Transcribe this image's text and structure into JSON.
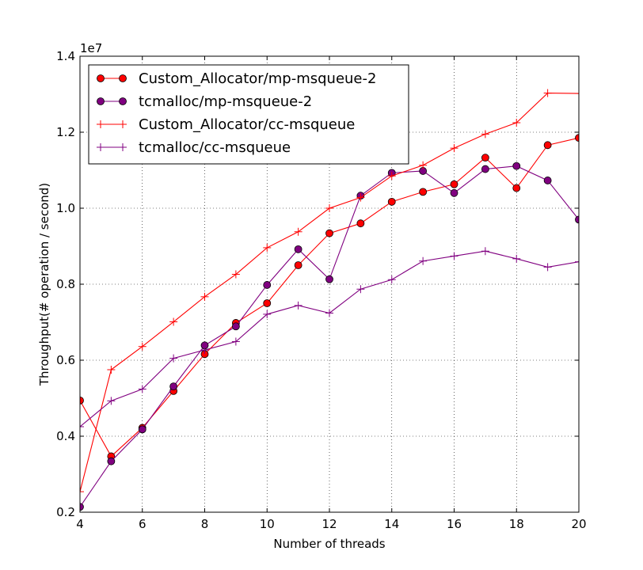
{
  "chart_data": {
    "type": "line",
    "title": "",
    "xlabel": "Number of threads",
    "ylabel": "Throughput(# operation / second)",
    "y_offset_label": "1e7",
    "xlim": [
      4,
      20
    ],
    "ylim": [
      0.2,
      1.4
    ],
    "xticks": [
      4,
      6,
      8,
      10,
      12,
      14,
      16,
      18,
      20
    ],
    "xtick_labels": [
      "4",
      "6",
      "8",
      "10",
      "12",
      "14",
      "16",
      "18",
      "20"
    ],
    "yticks": [
      0.2,
      0.4,
      0.6,
      0.8,
      1.0,
      1.2,
      1.4
    ],
    "ytick_labels": [
      "0.2",
      "0.4",
      "0.6",
      "0.8",
      "1.0",
      "1.2",
      "1.4"
    ],
    "grid": true,
    "legend_position": "top-left",
    "x": [
      4,
      5,
      6,
      7,
      8,
      9,
      10,
      11,
      12,
      13,
      14,
      15,
      16,
      17,
      18,
      19,
      20
    ],
    "series": [
      {
        "name": "Custom_Allocator/mp-msqueue-2",
        "color": "#ff0000",
        "marker": "circle",
        "values": [
          0.494,
          0.347,
          0.422,
          0.519,
          0.616,
          0.698,
          0.75,
          0.85,
          0.934,
          0.96,
          1.017,
          1.043,
          1.063,
          1.133,
          1.053,
          1.166,
          1.185
        ]
      },
      {
        "name": "tcmalloc/mp-msqueue-2",
        "color": "#800080",
        "marker": "circle",
        "values": [
          0.214,
          0.334,
          0.418,
          0.531,
          0.639,
          0.689,
          0.798,
          0.892,
          0.813,
          1.033,
          1.093,
          1.098,
          1.04,
          1.103,
          1.111,
          1.073,
          0.97
        ]
      },
      {
        "name": "Custom_Allocator/cc-msqueue",
        "color": "#ff0000",
        "marker": "plus",
        "values": [
          0.254,
          0.575,
          0.636,
          0.701,
          0.767,
          0.826,
          0.896,
          0.938,
          1.0,
          1.028,
          1.085,
          1.113,
          1.158,
          1.195,
          1.225,
          1.303,
          1.302
        ]
      },
      {
        "name": "tcmalloc/cc-msqueue",
        "color": "#800080",
        "marker": "plus",
        "values": [
          0.425,
          0.493,
          0.524,
          0.605,
          0.627,
          0.649,
          0.721,
          0.744,
          0.724,
          0.787,
          0.812,
          0.861,
          0.874,
          0.887,
          0.867,
          0.845,
          0.859
        ]
      }
    ]
  }
}
